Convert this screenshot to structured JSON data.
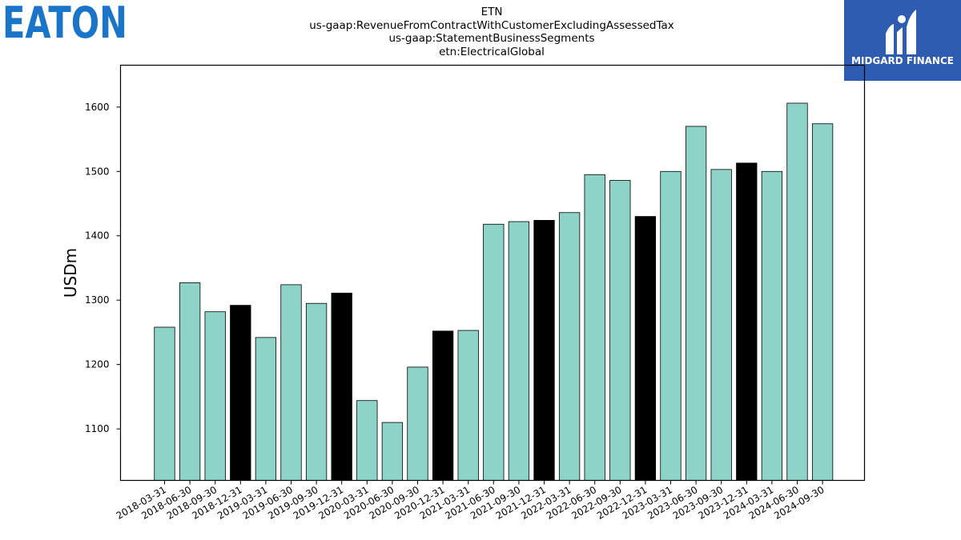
{
  "header": {
    "eaton_logo_text": "EATON",
    "brand_name": "MIDGARD FINANCE"
  },
  "chart_data": {
    "type": "bar",
    "title": [
      "ETN",
      "us-gaap:RevenueFromContractWithCustomerExcludingAssessedTax",
      "us-gaap:StatementBusinessSegments",
      "etn:ElectricalGlobal"
    ],
    "xlabel": "",
    "ylabel": "USDm",
    "ylim": [
      1020,
      1665
    ],
    "yticks": [
      1100,
      1200,
      1300,
      1400,
      1500,
      1600
    ],
    "grid": false,
    "colors": {
      "quarter": "#8dd3c7",
      "year_end": "#000000"
    },
    "categories": [
      "2018-03-31",
      "2018-06-30",
      "2018-09-30",
      "2018-12-31",
      "2019-03-31",
      "2019-06-30",
      "2019-09-30",
      "2019-12-31",
      "2020-03-31",
      "2020-06-30",
      "2020-09-30",
      "2020-12-31",
      "2021-03-31",
      "2021-06-30",
      "2021-09-30",
      "2021-12-31",
      "2022-03-31",
      "2022-06-30",
      "2022-09-30",
      "2022-12-31",
      "2023-03-31",
      "2023-06-30",
      "2023-09-30",
      "2023-12-31",
      "2024-03-31",
      "2024-06-30",
      "2024-09-30"
    ],
    "values": [
      1258,
      1327,
      1282,
      1292,
      1242,
      1324,
      1295,
      1311,
      1144,
      1110,
      1196,
      1252,
      1253,
      1418,
      1422,
      1424,
      1436,
      1495,
      1486,
      1430,
      1500,
      1570,
      1503,
      1513,
      1500,
      1606,
      1574
    ]
  }
}
